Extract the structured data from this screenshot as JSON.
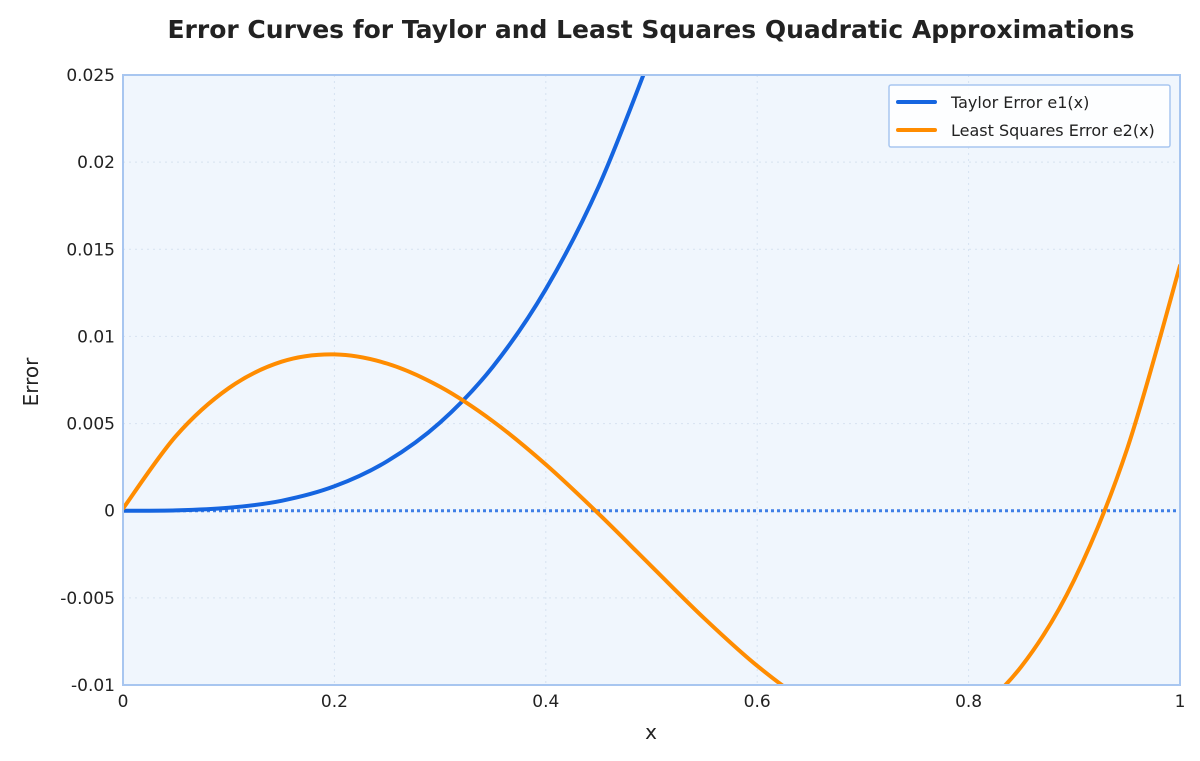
{
  "chart_data": {
    "type": "line",
    "title": "Error Curves for Taylor and Least Squares Quadratic Approximations",
    "xlabel": "x",
    "ylabel": "Error",
    "xlim": [
      0,
      1
    ],
    "ylim": [
      -0.01,
      0.025
    ],
    "x_ticks": [
      0,
      0.2,
      0.4,
      0.6,
      0.8,
      1
    ],
    "x_tick_labels": [
      "0",
      "0.2",
      "0.4",
      "0.6",
      "0.8",
      "1"
    ],
    "y_ticks": [
      -0.01,
      -0.005,
      0,
      0.005,
      0.01,
      0.015,
      0.02,
      0.025
    ],
    "y_tick_labels": [
      "-0.01",
      "-0.005",
      "0",
      "0.005",
      "0.01",
      "0.015",
      "0.02",
      "0.025"
    ],
    "grid": true,
    "legend_position": "top-right",
    "zero_line": true,
    "series": [
      {
        "name": "Taylor Error e1(x)",
        "color": "#1565e0",
        "x": [
          0,
          0.05,
          0.1,
          0.15,
          0.2,
          0.25,
          0.3,
          0.35,
          0.4,
          0.45,
          0.5,
          0.51
        ],
        "y": [
          0,
          2e-05,
          0.00017,
          0.00057,
          0.0014,
          0.00284,
          0.00506,
          0.00827,
          0.01271,
          0.0186,
          0.02621,
          0.0279
        ]
      },
      {
        "name": "Least Squares Error e2(x)",
        "color": "#ff8c00",
        "x": [
          0,
          0.05,
          0.1,
          0.15,
          0.2,
          0.25,
          0.3,
          0.35,
          0.4,
          0.45,
          0.5,
          0.55,
          0.6,
          0.65,
          0.7,
          0.75,
          0.8,
          0.85,
          0.9,
          0.95,
          1.0
        ],
        "y": [
          0.00012,
          0.00428,
          0.00703,
          0.00855,
          0.00897,
          0.00844,
          0.00711,
          0.00513,
          0.00265,
          -0.00018,
          -0.00319,
          -0.00618,
          -0.0089,
          -0.0111,
          -0.01252,
          -0.01285,
          -0.01177,
          -0.00893,
          -0.00396,
          0.00355,
          0.01406
        ]
      }
    ]
  }
}
